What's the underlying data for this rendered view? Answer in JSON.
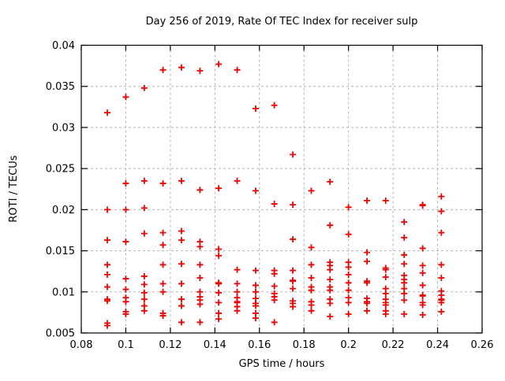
{
  "page": {
    "background": "#ffffff"
  },
  "chart_data": {
    "type": "scatter",
    "title": "Day 256 of 2019, Rate Of TEC Index for receiver sulp",
    "xlabel": "GPS time / hours",
    "ylabel": "ROTI / TECUs",
    "xlim": [
      0.08,
      0.26
    ],
    "ylim": [
      0.005,
      0.04
    ],
    "xticks": [
      0.08,
      0.1,
      0.12,
      0.14,
      0.16,
      0.18,
      0.2,
      0.22,
      0.24,
      0.26
    ],
    "xtick_labels": [
      "0.08",
      "0.1",
      "0.12",
      "0.14",
      "0.16",
      "0.18",
      "0.2",
      "0.22",
      "0.24",
      "0.26"
    ],
    "yticks": [
      0.005,
      0.01,
      0.015,
      0.02,
      0.025,
      0.03,
      0.035,
      0.04
    ],
    "ytick_labels": [
      "0.005",
      "0.01",
      "0.015",
      "0.02",
      "0.025",
      "0.03",
      "0.035",
      "0.04"
    ],
    "grid": true,
    "legend": "none",
    "grid_color": "#b4b4b4",
    "border_color": "#000000",
    "marker": {
      "shape": "plus",
      "color": "#ee0000",
      "size": 8,
      "stroke_width": 1.8
    },
    "series": [
      {
        "name": "roti",
        "points": [
          [
            0.0917,
            0.0318
          ],
          [
            0.0917,
            0.02
          ],
          [
            0.0917,
            0.0163
          ],
          [
            0.0917,
            0.0133
          ],
          [
            0.0917,
            0.0121
          ],
          [
            0.0917,
            0.0106
          ],
          [
            0.0917,
            0.0091
          ],
          [
            0.0917,
            0.0089
          ],
          [
            0.0917,
            0.0062
          ],
          [
            0.0917,
            0.0059
          ],
          [
            0.1,
            0.0337
          ],
          [
            0.1,
            0.0232
          ],
          [
            0.1,
            0.02
          ],
          [
            0.1,
            0.0161
          ],
          [
            0.1,
            0.0116
          ],
          [
            0.1,
            0.0103
          ],
          [
            0.1,
            0.0093
          ],
          [
            0.1,
            0.0088
          ],
          [
            0.1,
            0.0076
          ],
          [
            0.1,
            0.0073
          ],
          [
            0.1083,
            0.0348
          ],
          [
            0.1083,
            0.0235
          ],
          [
            0.1083,
            0.0202
          ],
          [
            0.1083,
            0.0171
          ],
          [
            0.1083,
            0.0119
          ],
          [
            0.1083,
            0.0109
          ],
          [
            0.1083,
            0.0099
          ],
          [
            0.1083,
            0.0091
          ],
          [
            0.1083,
            0.0083
          ],
          [
            0.1083,
            0.0077
          ],
          [
            0.1167,
            0.037
          ],
          [
            0.1167,
            0.0232
          ],
          [
            0.1167,
            0.0172
          ],
          [
            0.1167,
            0.0157
          ],
          [
            0.1167,
            0.0133
          ],
          [
            0.1167,
            0.011
          ],
          [
            0.1167,
            0.01
          ],
          [
            0.1167,
            0.0074
          ],
          [
            0.1167,
            0.0071
          ],
          [
            0.125,
            0.0373
          ],
          [
            0.125,
            0.0235
          ],
          [
            0.125,
            0.0174
          ],
          [
            0.125,
            0.0163
          ],
          [
            0.125,
            0.0134
          ],
          [
            0.125,
            0.011
          ],
          [
            0.125,
            0.0091
          ],
          [
            0.125,
            0.0083
          ],
          [
            0.125,
            0.0063
          ],
          [
            0.1333,
            0.0369
          ],
          [
            0.1333,
            0.0224
          ],
          [
            0.1333,
            0.0161
          ],
          [
            0.1333,
            0.0155
          ],
          [
            0.1333,
            0.0133
          ],
          [
            0.1333,
            0.0117
          ],
          [
            0.1333,
            0.01
          ],
          [
            0.1333,
            0.0094
          ],
          [
            0.1333,
            0.009
          ],
          [
            0.1333,
            0.0085
          ],
          [
            0.1333,
            0.0063
          ],
          [
            0.1417,
            0.0377
          ],
          [
            0.1417,
            0.0226
          ],
          [
            0.1417,
            0.0152
          ],
          [
            0.1417,
            0.0144
          ],
          [
            0.1417,
            0.0111
          ],
          [
            0.1417,
            0.011
          ],
          [
            0.1417,
            0.0099
          ],
          [
            0.1417,
            0.0087
          ],
          [
            0.1417,
            0.0074
          ],
          [
            0.1417,
            0.0067
          ],
          [
            0.15,
            0.037
          ],
          [
            0.15,
            0.0235
          ],
          [
            0.15,
            0.0127
          ],
          [
            0.15,
            0.011
          ],
          [
            0.15,
            0.01
          ],
          [
            0.15,
            0.0093
          ],
          [
            0.15,
            0.0088
          ],
          [
            0.15,
            0.0087
          ],
          [
            0.15,
            0.0082
          ],
          [
            0.15,
            0.0077
          ],
          [
            0.1583,
            0.0323
          ],
          [
            0.1583,
            0.0223
          ],
          [
            0.1583,
            0.0126
          ],
          [
            0.1583,
            0.0108
          ],
          [
            0.1583,
            0.01
          ],
          [
            0.1583,
            0.0092
          ],
          [
            0.1583,
            0.0086
          ],
          [
            0.1583,
            0.0083
          ],
          [
            0.1583,
            0.0074
          ],
          [
            0.1583,
            0.0068
          ],
          [
            0.1667,
            0.0327
          ],
          [
            0.1667,
            0.0207
          ],
          [
            0.1667,
            0.0126
          ],
          [
            0.1667,
            0.0122
          ],
          [
            0.1667,
            0.0107
          ],
          [
            0.1667,
            0.0098
          ],
          [
            0.1667,
            0.0094
          ],
          [
            0.1667,
            0.009
          ],
          [
            0.1667,
            0.0063
          ],
          [
            0.175,
            0.0267
          ],
          [
            0.175,
            0.0206
          ],
          [
            0.175,
            0.0164
          ],
          [
            0.175,
            0.0126
          ],
          [
            0.175,
            0.0114
          ],
          [
            0.175,
            0.0113
          ],
          [
            0.175,
            0.0104
          ],
          [
            0.175,
            0.0089
          ],
          [
            0.175,
            0.0086
          ],
          [
            0.175,
            0.0082
          ],
          [
            0.1833,
            0.0223
          ],
          [
            0.1833,
            0.0154
          ],
          [
            0.1833,
            0.0133
          ],
          [
            0.1833,
            0.0117
          ],
          [
            0.1833,
            0.0106
          ],
          [
            0.1833,
            0.0102
          ],
          [
            0.1833,
            0.0088
          ],
          [
            0.1833,
            0.0084
          ],
          [
            0.1833,
            0.0077
          ],
          [
            0.1917,
            0.0234
          ],
          [
            0.1917,
            0.0181
          ],
          [
            0.1917,
            0.0136
          ],
          [
            0.1917,
            0.0132
          ],
          [
            0.1917,
            0.0127
          ],
          [
            0.1917,
            0.0115
          ],
          [
            0.1917,
            0.0106
          ],
          [
            0.1917,
            0.0102
          ],
          [
            0.1917,
            0.0091
          ],
          [
            0.1917,
            0.0086
          ],
          [
            0.1917,
            0.007
          ],
          [
            0.2,
            0.0203
          ],
          [
            0.2,
            0.017
          ],
          [
            0.2,
            0.0136
          ],
          [
            0.2,
            0.013
          ],
          [
            0.2,
            0.0121
          ],
          [
            0.2,
            0.0111
          ],
          [
            0.2,
            0.0102
          ],
          [
            0.2,
            0.0093
          ],
          [
            0.2,
            0.0087
          ],
          [
            0.2,
            0.0073
          ],
          [
            0.2083,
            0.0211
          ],
          [
            0.2083,
            0.0148
          ],
          [
            0.2083,
            0.0137
          ],
          [
            0.2083,
            0.0113
          ],
          [
            0.2083,
            0.0111
          ],
          [
            0.2083,
            0.0092
          ],
          [
            0.2083,
            0.0088
          ],
          [
            0.2083,
            0.0086
          ],
          [
            0.2083,
            0.0077
          ],
          [
            0.2167,
            0.0211
          ],
          [
            0.2167,
            0.0129
          ],
          [
            0.2167,
            0.0127
          ],
          [
            0.2167,
            0.0118
          ],
          [
            0.2167,
            0.0104
          ],
          [
            0.2167,
            0.0098
          ],
          [
            0.2167,
            0.0091
          ],
          [
            0.2167,
            0.0087
          ],
          [
            0.2167,
            0.0084
          ],
          [
            0.2167,
            0.0077
          ],
          [
            0.2167,
            0.0073
          ],
          [
            0.225,
            0.0185
          ],
          [
            0.225,
            0.0166
          ],
          [
            0.225,
            0.0145
          ],
          [
            0.225,
            0.0134
          ],
          [
            0.225,
            0.012
          ],
          [
            0.225,
            0.0115
          ],
          [
            0.225,
            0.0111
          ],
          [
            0.225,
            0.0104
          ],
          [
            0.225,
            0.0098
          ],
          [
            0.225,
            0.009
          ],
          [
            0.225,
            0.0073
          ],
          [
            0.2333,
            0.0206
          ],
          [
            0.2333,
            0.0205
          ],
          [
            0.2333,
            0.0153
          ],
          [
            0.2333,
            0.0132
          ],
          [
            0.2333,
            0.0123
          ],
          [
            0.2333,
            0.0108
          ],
          [
            0.2333,
            0.0096
          ],
          [
            0.2333,
            0.0095
          ],
          [
            0.2333,
            0.0087
          ],
          [
            0.2333,
            0.0084
          ],
          [
            0.2333,
            0.0072
          ],
          [
            0.2417,
            0.0216
          ],
          [
            0.2417,
            0.0198
          ],
          [
            0.2417,
            0.0172
          ],
          [
            0.2417,
            0.0133
          ],
          [
            0.2417,
            0.0117
          ],
          [
            0.2417,
            0.0101
          ],
          [
            0.2417,
            0.0096
          ],
          [
            0.2417,
            0.0091
          ],
          [
            0.2417,
            0.009
          ],
          [
            0.2417,
            0.0087
          ],
          [
            0.2417,
            0.0076
          ]
        ]
      }
    ]
  }
}
